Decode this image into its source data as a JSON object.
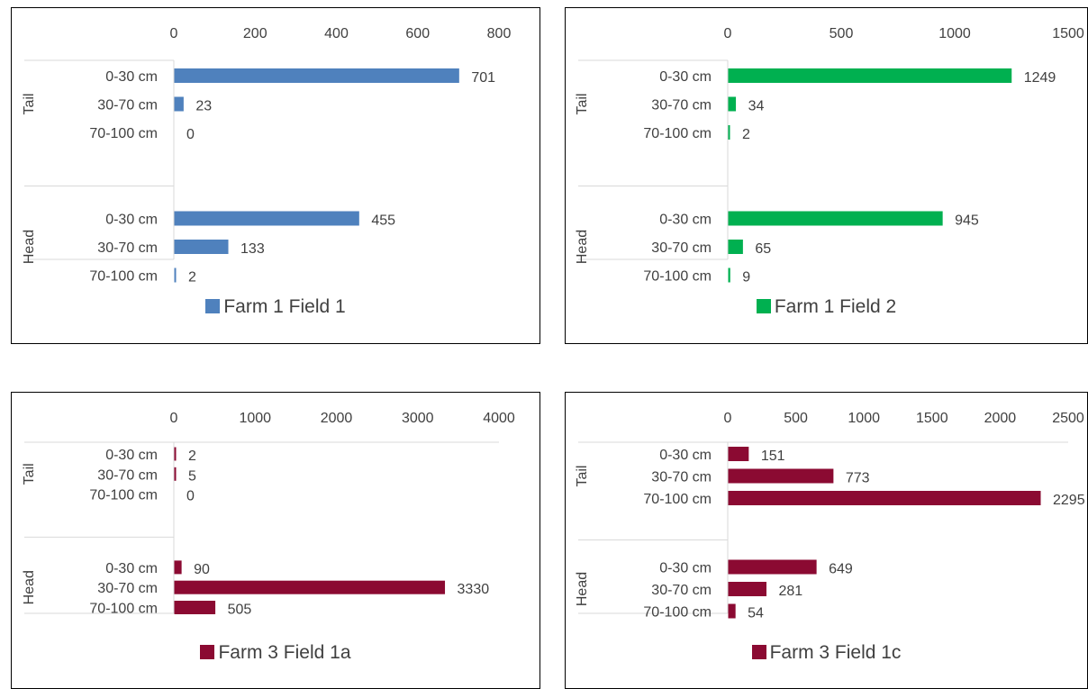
{
  "chart_data": [
    {
      "type": "bar",
      "orientation": "horizontal",
      "groups": [
        "Tail",
        "Head"
      ],
      "categories": [
        "0-30 cm",
        "30-70 cm",
        "70-100 cm"
      ],
      "series": [
        {
          "name": "Farm 1 Field 1",
          "values": [
            [
              701,
              23,
              0
            ],
            [
              455,
              133,
              2
            ]
          ]
        }
      ],
      "color": "#4f81bd",
      "xlim": [
        0,
        800
      ],
      "ticks": [
        0,
        200,
        400,
        600,
        800
      ],
      "tick_labels": [
        "0",
        "200",
        "400",
        "600",
        "800"
      ],
      "legend": "bottom",
      "grid": false
    },
    {
      "type": "bar",
      "orientation": "horizontal",
      "groups": [
        "Tail",
        "Head"
      ],
      "categories": [
        "0-30 cm",
        "30-70 cm",
        "70-100 cm"
      ],
      "series": [
        {
          "name": "Farm 1 Field 2",
          "values": [
            [
              1249,
              34,
              2
            ],
            [
              945,
              65,
              9
            ]
          ]
        }
      ],
      "color": "#00b050",
      "xlim": [
        0,
        1500
      ],
      "ticks": [
        0,
        500,
        1000,
        1500
      ],
      "tick_labels": [
        "0",
        "500",
        "1000",
        "1500"
      ],
      "legend": "bottom",
      "grid": false
    },
    {
      "type": "bar",
      "orientation": "horizontal",
      "groups": [
        "Tail",
        "Head"
      ],
      "categories": [
        "0-30 cm",
        "30-70 cm",
        "70-100 cm"
      ],
      "series": [
        {
          "name": "Farm 3 Field 1a",
          "values": [
            [
              2,
              5,
              0
            ],
            [
              90,
              3330,
              505
            ]
          ]
        }
      ],
      "color": "#8b0a32",
      "xlim": [
        0,
        4000
      ],
      "ticks": [
        0,
        1000,
        2000,
        3000,
        4000
      ],
      "tick_labels": [
        "0",
        "1000",
        "2000",
        "3000",
        "4000"
      ],
      "legend": "bottom",
      "grid": true
    },
    {
      "type": "bar",
      "orientation": "horizontal",
      "groups": [
        "Tail",
        "Head"
      ],
      "categories": [
        "0-30 cm",
        "30-70 cm",
        "70-100 cm"
      ],
      "series": [
        {
          "name": "Farm 3 Field 1c",
          "values": [
            [
              151,
              773,
              2295
            ],
            [
              649,
              281,
              54
            ]
          ]
        }
      ],
      "color": "#8b0a32",
      "xlim": [
        0,
        2500
      ],
      "ticks": [
        0,
        500,
        1000,
        1500,
        2000,
        2500
      ],
      "tick_labels": [
        "0",
        "500",
        "1000",
        "1500",
        "2000",
        "2500"
      ],
      "legend": "bottom",
      "grid": true
    }
  ]
}
